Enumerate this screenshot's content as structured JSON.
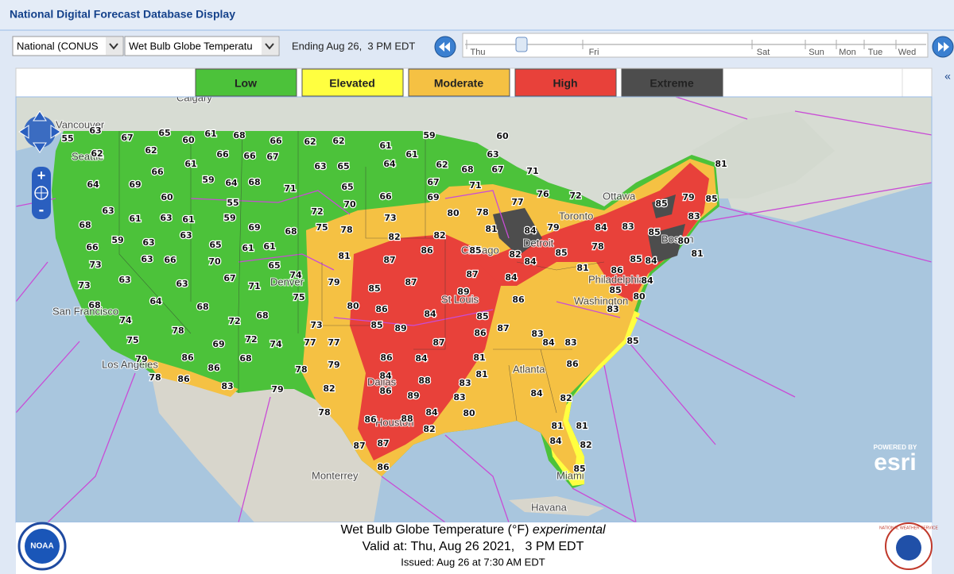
{
  "header": {
    "title": "National Digital Forecast Database Display"
  },
  "toolbar": {
    "region_select": "National (CONUS",
    "element_select": "Wet Bulb Globe Temperatu",
    "ending": "Ending Aug 26,  3 PM EDT",
    "timeline_days": [
      "Thu",
      "Fri",
      "Sat",
      "Sun",
      "Mon",
      "Tue",
      "Wed"
    ]
  },
  "legend": [
    {
      "label": "Low",
      "color": "#4cc23a"
    },
    {
      "label": "Elevated",
      "color": "#ffff40"
    },
    {
      "label": "Moderate",
      "color": "#f5c143"
    },
    {
      "label": "High",
      "color": "#e8413a"
    },
    {
      "label": "Extreme",
      "color": "#4d4d4d"
    }
  ],
  "map": {
    "cities": [
      "Calgary",
      "Vancouver",
      "Seattle",
      "San Francisco",
      "Los Angeles",
      "Denver",
      "Dallas",
      "Houston",
      "St Louis",
      "Chicago",
      "Detroit",
      "Toronto",
      "Ottawa",
      "Boston",
      "Philadelphia",
      "Washington",
      "Atlanta",
      "Miami",
      "Havana",
      "Monterrey"
    ],
    "labels": [
      63,
      55,
      67,
      65,
      60,
      61,
      68,
      66,
      62,
      62,
      60,
      59,
      61,
      61,
      63,
      62,
      62,
      66,
      66,
      67,
      63,
      65,
      64,
      62,
      68,
      67,
      71,
      64,
      69,
      66,
      61,
      59,
      64,
      68,
      71,
      65,
      67,
      71,
      60,
      55,
      70,
      66,
      69,
      76,
      72,
      63,
      61,
      63,
      61,
      59,
      72,
      73,
      80,
      78,
      77,
      68,
      63,
      69,
      68,
      75,
      78,
      82,
      82,
      81,
      84,
      79,
      84,
      83,
      85,
      81,
      79,
      85,
      85,
      83,
      59,
      63,
      65,
      61,
      61,
      81,
      87,
      86,
      85,
      82,
      85,
      78,
      84,
      81,
      80,
      66,
      73,
      63,
      66,
      70,
      65,
      81,
      86,
      87,
      84,
      84,
      85,
      63,
      63,
      67,
      71,
      74,
      79,
      87,
      89,
      84,
      73,
      75,
      80,
      86,
      86,
      85,
      80,
      68,
      64,
      68,
      68,
      85,
      84,
      85,
      74,
      72,
      73,
      85,
      89,
      87,
      86,
      83,
      83,
      85,
      75,
      78,
      69,
      72,
      74,
      77,
      77,
      87,
      84,
      83,
      86,
      68,
      86,
      84,
      81,
      86,
      79,
      78,
      86,
      86,
      78,
      79,
      84,
      88,
      81,
      83,
      83,
      79,
      82,
      86,
      89,
      83,
      84,
      82,
      78,
      86,
      88,
      84,
      80,
      81,
      81,
      82,
      87,
      87,
      84,
      82,
      86,
      85
    ],
    "attribution": {
      "powered_by": "POWERED BY",
      "brand": "esri"
    }
  },
  "footer": {
    "title": "Wet Bulb Globe Temperature (°F)",
    "qualifier": "experimental",
    "valid": "Valid at: Thu, Aug 26 2021,   3 PM EDT",
    "issued": "Issued: Aug 26 at 7:30 AM EDT",
    "noaa": "NOAA",
    "nws": "NATIONAL WEATHER SERVICE"
  }
}
